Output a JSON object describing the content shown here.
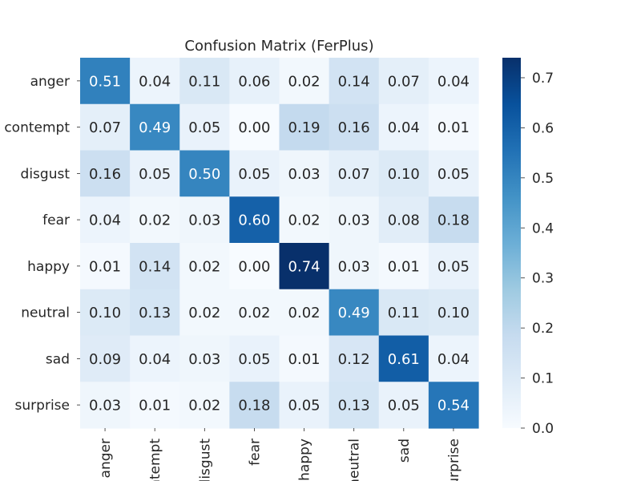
{
  "chart_data": {
    "type": "heatmap",
    "title": "Confusion Matrix (FerPlus)",
    "xlabel": "",
    "ylabel": "",
    "row_labels": [
      "anger",
      "contempt",
      "disgust",
      "fear",
      "happy",
      "neutral",
      "sad",
      "surprise"
    ],
    "col_labels": [
      "anger",
      "contempt",
      "disgust",
      "fear",
      "happy",
      "neutral",
      "sad",
      "surprise"
    ],
    "values": [
      [
        0.51,
        0.04,
        0.11,
        0.06,
        0.02,
        0.14,
        0.07,
        0.04
      ],
      [
        0.07,
        0.49,
        0.05,
        0.0,
        0.19,
        0.16,
        0.04,
        0.01
      ],
      [
        0.16,
        0.05,
        0.5,
        0.05,
        0.03,
        0.07,
        0.1,
        0.05
      ],
      [
        0.04,
        0.02,
        0.03,
        0.6,
        0.02,
        0.03,
        0.08,
        0.18
      ],
      [
        0.01,
        0.14,
        0.02,
        0.0,
        0.74,
        0.03,
        0.01,
        0.05
      ],
      [
        0.1,
        0.13,
        0.02,
        0.02,
        0.02,
        0.49,
        0.11,
        0.1
      ],
      [
        0.09,
        0.04,
        0.03,
        0.05,
        0.01,
        0.12,
        0.61,
        0.04
      ],
      [
        0.03,
        0.01,
        0.02,
        0.18,
        0.05,
        0.13,
        0.05,
        0.54
      ]
    ],
    "value_labels": [
      [
        "0.51",
        "0.04",
        "0.11",
        "0.06",
        "0.02",
        "0.14",
        "0.07",
        "0.04"
      ],
      [
        "0.07",
        "0.49",
        "0.05",
        "0.00",
        "0.19",
        "0.16",
        "0.04",
        "0.01"
      ],
      [
        "0.16",
        "0.05",
        "0.50",
        "0.05",
        "0.03",
        "0.07",
        "0.10",
        "0.05"
      ],
      [
        "0.04",
        "0.02",
        "0.03",
        "0.60",
        "0.02",
        "0.03",
        "0.08",
        "0.18"
      ],
      [
        "0.01",
        "0.14",
        "0.02",
        "0.00",
        "0.74",
        "0.03",
        "0.01",
        "0.05"
      ],
      [
        "0.10",
        "0.13",
        "0.02",
        "0.02",
        "0.02",
        "0.49",
        "0.11",
        "0.10"
      ],
      [
        "0.09",
        "0.04",
        "0.03",
        "0.05",
        "0.01",
        "0.12",
        "0.61",
        "0.04"
      ],
      [
        "0.03",
        "0.01",
        "0.02",
        "0.18",
        "0.05",
        "0.13",
        "0.05",
        "0.54"
      ]
    ],
    "colormap": "Blues",
    "color_range": [
      0.0,
      0.74
    ],
    "colorbar_ticks": [
      0.0,
      0.1,
      0.2,
      0.3,
      0.4,
      0.5,
      0.6,
      0.7
    ],
    "colorbar_tick_labels": [
      "0.0",
      "0.1",
      "0.2",
      "0.3",
      "0.4",
      "0.5",
      "0.6",
      "0.7"
    ],
    "colorbar_position": "right",
    "annotation_dark": "#262626",
    "annotation_light": "#ffffff",
    "grid": false
  }
}
